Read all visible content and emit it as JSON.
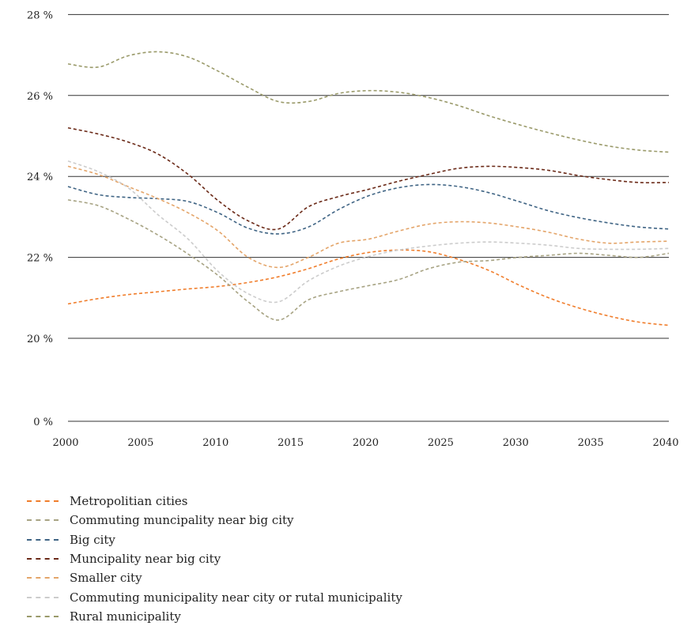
{
  "chart_data": {
    "type": "line",
    "title": "",
    "xlabel": "",
    "ylabel": "",
    "x_ticks": [
      "2000",
      "2005",
      "2010",
      "2015",
      "2020",
      "2025",
      "2030",
      "2035",
      "2040"
    ],
    "y_ticks": [
      {
        "value": 0,
        "label": "0 %"
      },
      {
        "value": 20,
        "label": "20 %"
      },
      {
        "value": 22,
        "label": "22 %"
      },
      {
        "value": 24,
        "label": "24 %"
      },
      {
        "value": 26,
        "label": "26 %"
      },
      {
        "value": 28,
        "label": "28 %"
      }
    ],
    "y_axis_note": "broken axis: 0 % baseline, then 20 % to 28 %",
    "xlim": [
      2000,
      2040
    ],
    "grid": "horizontal",
    "legend_position": "bottom",
    "line_style": "dashed",
    "x": [
      2000,
      2002,
      2004,
      2006,
      2008,
      2010,
      2012,
      2014,
      2016,
      2018,
      2020,
      2022,
      2024,
      2026,
      2028,
      2030,
      2032,
      2034,
      2036,
      2038,
      2040
    ],
    "series": [
      {
        "name": "Metropolitian cities",
        "color": "#F07D2B",
        "values": [
          20.85,
          20.98,
          21.08,
          21.15,
          21.22,
          21.28,
          21.38,
          21.52,
          21.72,
          21.96,
          22.12,
          22.18,
          22.14,
          21.95,
          21.68,
          21.32,
          21.0,
          20.75,
          20.55,
          20.4,
          20.32
        ]
      },
      {
        "name": "Commuting muncipality near big city",
        "color": "#A7A383",
        "values": [
          23.42,
          23.28,
          22.95,
          22.55,
          22.08,
          21.55,
          20.9,
          20.45,
          20.95,
          21.15,
          21.3,
          21.45,
          21.72,
          21.88,
          21.92,
          22.0,
          22.05,
          22.1,
          22.05,
          22.0,
          22.1
        ]
      },
      {
        "name": "Big city",
        "color": "#3F6484",
        "values": [
          23.75,
          23.55,
          23.48,
          23.45,
          23.38,
          23.1,
          22.72,
          22.58,
          22.75,
          23.18,
          23.52,
          23.72,
          23.8,
          23.75,
          23.6,
          23.38,
          23.15,
          22.98,
          22.85,
          22.75,
          22.7
        ]
      },
      {
        "name": "Muncipality near big city",
        "color": "#6B2A18",
        "values": [
          25.2,
          25.05,
          24.85,
          24.55,
          24.05,
          23.4,
          22.9,
          22.7,
          23.25,
          23.5,
          23.68,
          23.88,
          24.05,
          24.2,
          24.25,
          24.22,
          24.15,
          24.02,
          23.92,
          23.85,
          23.85
        ]
      },
      {
        "name": "Smaller city",
        "color": "#E4A56A",
        "values": [
          24.25,
          24.05,
          23.75,
          23.45,
          23.1,
          22.65,
          22.0,
          21.75,
          22.0,
          22.35,
          22.45,
          22.65,
          22.82,
          22.88,
          22.85,
          22.75,
          22.62,
          22.45,
          22.35,
          22.38,
          22.4
        ]
      },
      {
        "name": "Commuting municipality near city or rutal municipality",
        "color": "#CCCCCC",
        "values": [
          24.38,
          24.12,
          23.72,
          23.05,
          22.45,
          21.65,
          21.1,
          20.9,
          21.42,
          21.78,
          22.02,
          22.18,
          22.28,
          22.35,
          22.38,
          22.35,
          22.3,
          22.22,
          22.2,
          22.2,
          22.22
        ]
      },
      {
        "name": "Rural municipality",
        "color": "#9A9A6A",
        "values": [
          26.78,
          26.7,
          26.98,
          27.08,
          26.95,
          26.6,
          26.2,
          25.85,
          25.85,
          26.05,
          26.12,
          26.08,
          25.95,
          25.75,
          25.5,
          25.28,
          25.08,
          24.9,
          24.75,
          24.65,
          24.6
        ]
      }
    ]
  }
}
